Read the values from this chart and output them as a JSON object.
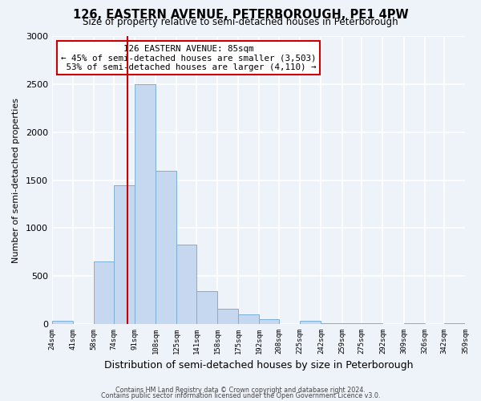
{
  "title": "126, EASTERN AVENUE, PETERBOROUGH, PE1 4PW",
  "subtitle": "Size of property relative to semi-detached houses in Peterborough",
  "xlabel": "Distribution of semi-detached houses by size in Peterborough",
  "ylabel": "Number of semi-detached properties",
  "bin_edges": [
    24,
    41,
    58,
    74,
    91,
    108,
    125,
    141,
    158,
    175,
    192,
    208,
    225,
    242,
    259,
    275,
    292,
    309,
    326,
    342,
    359
  ],
  "bar_heights": [
    35,
    0,
    650,
    1450,
    2500,
    1600,
    830,
    340,
    160,
    100,
    50,
    0,
    30,
    5,
    5,
    5,
    0,
    5,
    0,
    5
  ],
  "bar_color": "#c5d8f0",
  "bar_edge_color": "#7bafd4",
  "property_size": 85,
  "vline_color": "#cc0000",
  "annotation_line1": "126 EASTERN AVENUE: 85sqm",
  "annotation_line2": "← 45% of semi-detached houses are smaller (3,503)",
  "annotation_line3": " 53% of semi-detached houses are larger (4,110) →",
  "annotation_box_color": "#ffffff",
  "annotation_box_edge": "#cc0000",
  "ylim": [
    0,
    3000
  ],
  "yticks": [
    0,
    500,
    1000,
    1500,
    2000,
    2500,
    3000
  ],
  "footer1": "Contains HM Land Registry data © Crown copyright and database right 2024.",
  "footer2": "Contains public sector information licensed under the Open Government Licence v3.0.",
  "background_color": "#eef2f9",
  "grid_color": "#ffffff"
}
